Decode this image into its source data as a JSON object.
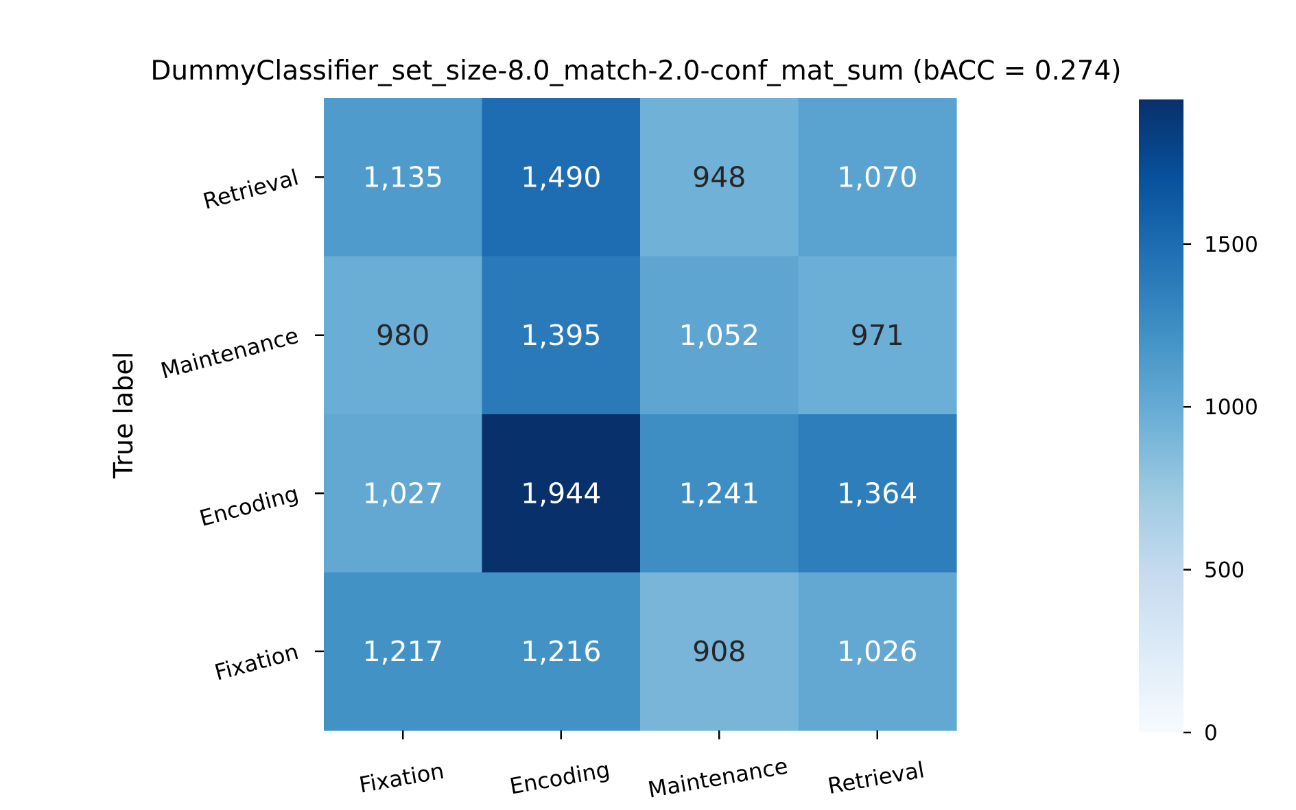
{
  "chart_data": {
    "type": "heatmap",
    "title": "DummyClassifier_set_size-8.0_match-2.0-conf_mat_sum (bACC = 0.274)",
    "ylabel": "True label",
    "xlabel": "",
    "x_categories": [
      "Fixation",
      "Encoding",
      "Maintenance",
      "Retrieval"
    ],
    "y_categories": [
      "Retrieval",
      "Maintenance",
      "Encoding",
      "Fixation"
    ],
    "values": [
      [
        1135,
        1490,
        948,
        1070
      ],
      [
        980,
        1395,
        1052,
        971
      ],
      [
        1027,
        1944,
        1241,
        1364
      ],
      [
        1217,
        1216,
        908,
        1026
      ]
    ],
    "labels": [
      [
        "1,135",
        "1,490",
        "948",
        "1,070"
      ],
      [
        "980",
        "1,395",
        "1,052",
        "971"
      ],
      [
        "1,027",
        "1,944",
        "1,241",
        "1,364"
      ],
      [
        "1,217",
        "1,216",
        "908",
        "1,026"
      ]
    ],
    "colormap": "Blues",
    "colorbar": {
      "range": [
        0,
        1944
      ],
      "ticks": [
        0,
        500,
        1000,
        1500
      ],
      "tick_labels": [
        "0",
        "500",
        "1000",
        "1500"
      ]
    }
  }
}
